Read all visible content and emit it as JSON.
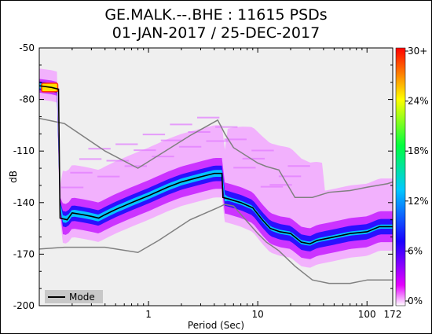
{
  "title_line1": "GE.MALK.--.BHE : 11615 PSDs",
  "title_line2": "01-JAN-2017 / 25-DEC-2017",
  "chart_data": {
    "type": "heatmap",
    "title": "GE.MALK.--.BHE : 11615 PSDs",
    "subtitle": "01-JAN-2017 / 25-DEC-2017",
    "xlabel": "Period (Sec)",
    "ylabel": "dB",
    "xscale": "log",
    "xlim": [
      0.1,
      172
    ],
    "ylim": [
      -200,
      -50
    ],
    "x_ticks": [
      1,
      10,
      100,
      172
    ],
    "x_tick_labels": [
      "1",
      "10",
      "100",
      "172"
    ],
    "y_ticks": [
      -50,
      -80,
      -110,
      -140,
      -170,
      -200
    ],
    "y_tick_labels": [
      "-50",
      "-80",
      "-110",
      "-140",
      "-170",
      "-200"
    ],
    "colorbar": {
      "ticks": [
        "0%",
        "6%",
        "12%",
        "18%",
        "24%",
        "30+"
      ],
      "colors": [
        "#ffffff",
        "#e500ff",
        "#1a00ff",
        "#00c8ff",
        "#00ff40",
        "#ffff00",
        "#ff0000"
      ]
    },
    "legend": {
      "placement": "bottom-left",
      "entries": [
        "Mode"
      ]
    },
    "background": "#efefef",
    "mode_series": {
      "name": "Mode",
      "period": [
        0.1,
        0.13,
        0.15,
        0.155,
        0.18,
        0.2,
        0.25,
        0.3,
        0.35,
        0.4,
        0.5,
        0.7,
        1.0,
        1.5,
        2.0,
        3.0,
        4.0,
        4.7,
        4.8,
        5.5,
        7.0,
        9.0,
        11,
        13,
        16,
        20,
        25,
        30,
        35,
        50,
        70,
        100,
        130,
        172
      ],
      "db": [
        -72,
        -73,
        -74,
        -149,
        -150,
        -146,
        -147,
        -148,
        -149,
        -147,
        -144,
        -140,
        -136,
        -131,
        -128,
        -125,
        -123,
        -123,
        -137,
        -138,
        -140,
        -143,
        -150,
        -155,
        -157,
        -158,
        -163,
        -164,
        -162,
        -160,
        -158,
        -157,
        -154,
        -154
      ]
    },
    "nhnm": {
      "period": [
        0.1,
        0.17,
        0.4,
        0.8,
        1.2,
        2.4,
        4.3,
        5.0,
        6.0,
        10,
        12,
        15.6,
        21.9,
        31.6,
        45,
        70,
        101,
        154,
        172
      ],
      "db": [
        -91,
        -94,
        -110,
        -120,
        -113,
        -101,
        -92,
        -100,
        -108,
        -117,
        -119,
        -121,
        -137,
        -137,
        -134,
        -133,
        -131,
        -129,
        -128
      ]
    },
    "nlnm": {
      "period": [
        0.1,
        0.17,
        0.4,
        0.8,
        1.24,
        2.4,
        4.3,
        5.0,
        6.0,
        10,
        12,
        15.6,
        21.9,
        31.6,
        45,
        70,
        101,
        154,
        172
      ],
      "db": [
        -167,
        -166,
        -166,
        -169,
        -162,
        -150,
        -143,
        -141,
        -142,
        -158,
        -163,
        -168,
        -177,
        -185,
        -187,
        -187,
        -185,
        -185,
        -185
      ]
    }
  }
}
